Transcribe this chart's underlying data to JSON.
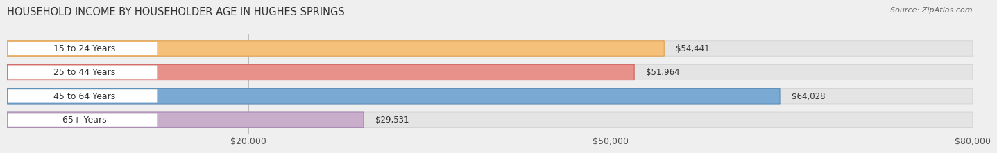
{
  "title": "HOUSEHOLD INCOME BY HOUSEHOLDER AGE IN HUGHES SPRINGS",
  "source": "Source: ZipAtlas.com",
  "categories": [
    "15 to 24 Years",
    "25 to 44 Years",
    "45 to 64 Years",
    "65+ Years"
  ],
  "values": [
    54441,
    51964,
    64028,
    29531
  ],
  "bar_colors": [
    "#F5C07A",
    "#E8908A",
    "#7AAAD4",
    "#C9AECB"
  ],
  "bar_edge_colors": [
    "#E0A050",
    "#D06060",
    "#5A8FBA",
    "#A888B5"
  ],
  "value_labels": [
    "$54,441",
    "$51,964",
    "$64,028",
    "$29,531"
  ],
  "xlim_max": 80000,
  "xticks": [
    20000,
    50000,
    80000
  ],
  "xtick_labels": [
    "$20,000",
    "$50,000",
    "$80,000"
  ],
  "background_color": "#efefef",
  "bar_bg_color": "#e4e4e4",
  "title_fontsize": 10.5,
  "label_fontsize": 9,
  "value_fontsize": 8.5,
  "source_fontsize": 8
}
